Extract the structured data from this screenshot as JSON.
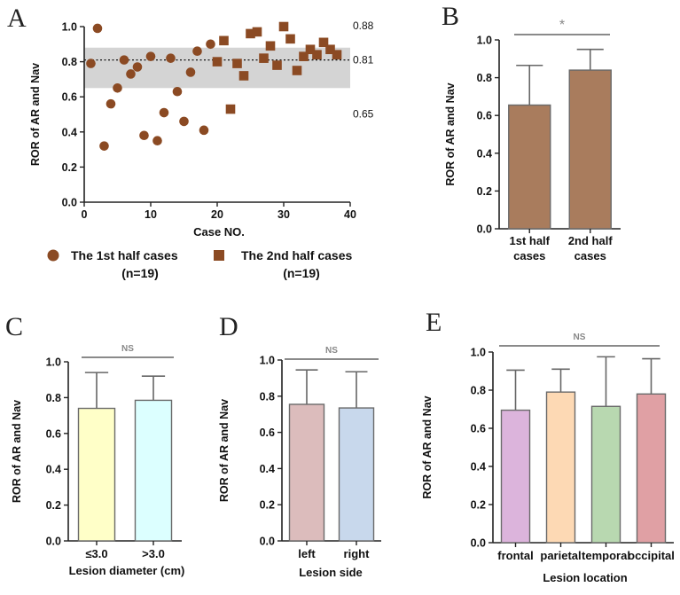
{
  "chart_data": [
    {
      "panel": "A",
      "type": "scatter",
      "xlabel": "Case NO.",
      "ylabel": "ROR of AR and Nav",
      "xlim": [
        0,
        40
      ],
      "ylim": [
        0,
        1.0
      ],
      "xticks": [
        "0",
        "10",
        "20",
        "30",
        "40"
      ],
      "yticks": [
        "0.0",
        "0.2",
        "0.4",
        "0.6",
        "0.8",
        "1.0"
      ],
      "band": [
        0.65,
        0.88
      ],
      "mean": 0.81,
      "ref_labels": [
        "0.88",
        "0.81",
        "0.65"
      ],
      "series": [
        {
          "name": "The 1st half cases",
          "n_label": "(n=19)",
          "marker": "circle",
          "color": "#8b4a23",
          "x": [
            1,
            2,
            3,
            4,
            5,
            6,
            7,
            8,
            9,
            10,
            11,
            12,
            13,
            14,
            15,
            16,
            17,
            18,
            19
          ],
          "y": [
            0.79,
            0.99,
            0.32,
            0.56,
            0.65,
            0.81,
            0.73,
            0.77,
            0.38,
            0.83,
            0.35,
            0.51,
            0.82,
            0.63,
            0.46,
            0.74,
            0.86,
            0.41,
            0.9
          ]
        },
        {
          "name": "The 2nd half cases",
          "n_label": "(n=19)",
          "marker": "square",
          "color": "#8b4a23",
          "x": [
            20,
            21,
            22,
            23,
            24,
            25,
            26,
            27,
            28,
            29,
            30,
            31,
            32,
            33,
            34,
            35,
            36,
            37,
            38
          ],
          "y": [
            0.8,
            0.92,
            0.53,
            0.79,
            0.72,
            0.96,
            0.97,
            0.82,
            0.89,
            0.78,
            1.0,
            0.93,
            0.75,
            0.83,
            0.87,
            0.84,
            0.91,
            0.87,
            0.84
          ]
        }
      ]
    },
    {
      "panel": "B",
      "type": "bar",
      "ylabel": "ROR of AR and Nav",
      "ylim": [
        0,
        1.0
      ],
      "yticks": [
        "0.0",
        "0.2",
        "0.4",
        "0.6",
        "0.8",
        "1.0"
      ],
      "categories": [
        "1st half cases",
        "2nd half cases"
      ],
      "category_lines": [
        [
          "1st half",
          "cases"
        ],
        [
          "2nd half",
          "cases"
        ]
      ],
      "values": [
        0.655,
        0.84
      ],
      "errors": [
        0.21,
        0.11
      ],
      "colors": [
        "#a97c5d",
        "#a97c5d"
      ],
      "significance": "*"
    },
    {
      "panel": "C",
      "type": "bar",
      "xlabel": "Lesion diameter (cm)",
      "ylabel": "ROR of AR and Nav",
      "ylim": [
        0,
        1.0
      ],
      "yticks": [
        "0.0",
        "0.2",
        "0.4",
        "0.6",
        "0.8",
        "1.0"
      ],
      "categories": [
        "≤3.0",
        ">3.0"
      ],
      "values": [
        0.74,
        0.785
      ],
      "errors": [
        0.2,
        0.135
      ],
      "colors": [
        "#ffffc8",
        "#dcffff"
      ],
      "significance": "NS"
    },
    {
      "panel": "D",
      "type": "bar",
      "xlabel": "Lesion side",
      "ylabel": "ROR of AR and Nav",
      "ylim": [
        0,
        1.0
      ],
      "yticks": [
        "0.0",
        "0.2",
        "0.4",
        "0.6",
        "0.8",
        "1.0"
      ],
      "categories": [
        "left",
        "right"
      ],
      "values": [
        0.755,
        0.735
      ],
      "errors": [
        0.19,
        0.2
      ],
      "colors": [
        "#dcbcbc",
        "#c8d8ec"
      ],
      "significance": "NS"
    },
    {
      "panel": "E",
      "type": "bar",
      "xlabel": "Lesion location",
      "ylabel": "ROR of AR and Nav",
      "ylim": [
        0,
        1.0
      ],
      "yticks": [
        "0.0",
        "0.2",
        "0.4",
        "0.6",
        "0.8",
        "1.0"
      ],
      "categories": [
        "frontal",
        "parietal",
        "temporal",
        "occipital"
      ],
      "values": [
        0.695,
        0.79,
        0.715,
        0.78
      ],
      "errors": [
        0.21,
        0.12,
        0.26,
        0.185
      ],
      "colors": [
        "#dcb4dc",
        "#fdd9b4",
        "#b8d8b0",
        "#e0a0a4"
      ],
      "significance": "NS"
    }
  ]
}
